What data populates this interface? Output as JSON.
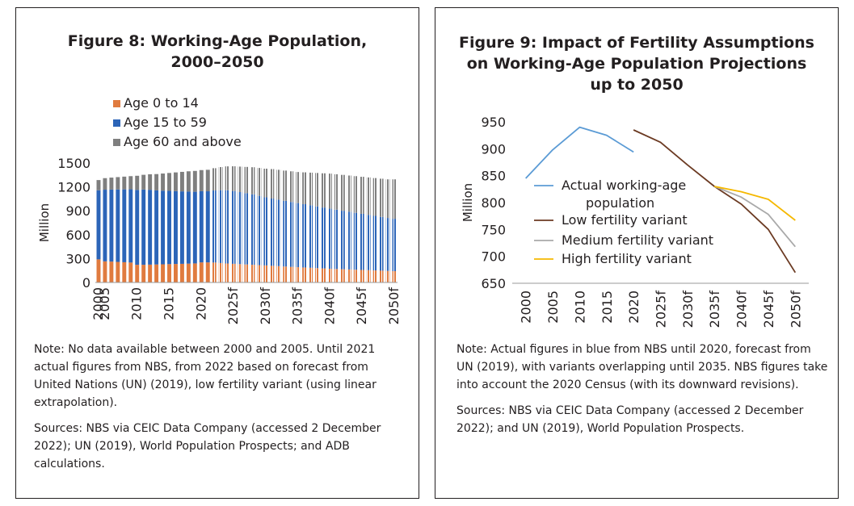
{
  "figure8": {
    "title_line1": "Figure 8: Working-Age Population,",
    "title_line2": "2000–2050",
    "note": "Note: No data available between 2000 and 2005. Until 2021 actual figures from NBS, from 2022 based on forecast from United Nations (UN) (2019), low fertility variant (using linear extrapolation).",
    "sources": "Sources: NBS via CEIC Data Company (accessed 2 December 2022); UN (2019), World Population Prospects; and ADB calculations."
  },
  "figure9": {
    "title_line1": "Figure 9: Impact of Fertility Assumptions",
    "title_line2": "on Working-Age Population Projections",
    "title_line3": "up to 2050",
    "note": "Note: Actual figures in blue from NBS until 2020, forecast from UN (2019), with variants overlapping until 2035. NBS figures take into account the 2020 Census (with its downward revisions).",
    "sources": "Sources: NBS via CEIC Data Company (accessed 2 December 2022); and UN (2019), World Population Prospects."
  },
  "chart_data": [
    {
      "type": "bar",
      "stacked": true,
      "ylabel": "Million",
      "ylim": [
        0,
        1500
      ],
      "yticks": [
        0,
        300,
        600,
        900,
        1200,
        1500
      ],
      "legend_position": "top",
      "forecast_style": "hatched from 2022",
      "categories": [
        "2000",
        "2005",
        "2006",
        "2007",
        "2008",
        "2009",
        "2010",
        "2011",
        "2012",
        "2013",
        "2014",
        "2015",
        "2016",
        "2017",
        "2018",
        "2019",
        "2020",
        "2021",
        "2022f",
        "2023f",
        "2024f",
        "2025f",
        "2026f",
        "2027f",
        "2028f",
        "2029f",
        "2030f",
        "2031f",
        "2032f",
        "2033f",
        "2034f",
        "2035f",
        "2036f",
        "2037f",
        "2038f",
        "2039f",
        "2040f",
        "2041f",
        "2042f",
        "2043f",
        "2044f",
        "2045f",
        "2046f",
        "2047f",
        "2048f",
        "2049f",
        "2050f"
      ],
      "tick_labels": [
        "2000",
        "2005",
        "2010",
        "2015",
        "2020",
        "2025f",
        "2030f",
        "2035f",
        "2040f",
        "2045f",
        "2050f"
      ],
      "series": [
        {
          "name": "Age 0 to 14",
          "color": "#e07b3f",
          "values": [
            290,
            265,
            262,
            258,
            254,
            250,
            222,
            222,
            224,
            226,
            228,
            230,
            232,
            234,
            236,
            239,
            252,
            252,
            250,
            244,
            238,
            234,
            230,
            226,
            222,
            218,
            214,
            209,
            205,
            200,
            196,
            192,
            188,
            184,
            180,
            176,
            172,
            169,
            166,
            163,
            160,
            157,
            154,
            151,
            148,
            145,
            142
          ]
        },
        {
          "name": "Age 15 to 59",
          "color": "#2c65b8",
          "values": [
            868,
            900,
            905,
            910,
            915,
            920,
            940,
            945,
            940,
            930,
            925,
            920,
            915,
            910,
            905,
            900,
            894,
            893,
            905,
            915,
            920,
            915,
            905,
            895,
            885,
            870,
            855,
            845,
            835,
            825,
            815,
            805,
            795,
            785,
            775,
            765,
            755,
            745,
            735,
            725,
            715,
            705,
            695,
            685,
            675,
            665,
            658
          ]
        },
        {
          "name": "Age 60 and above",
          "color": "#7f7f7f",
          "values": [
            128,
            145,
            150,
            155,
            160,
            165,
            178,
            185,
            195,
            205,
            215,
            225,
            235,
            245,
            255,
            262,
            265,
            270,
            280,
            290,
            300,
            310,
            320,
            330,
            340,
            350,
            360,
            370,
            375,
            380,
            385,
            390,
            400,
            410,
            420,
            430,
            440,
            445,
            450,
            455,
            460,
            465,
            470,
            475,
            480,
            485,
            495
          ]
        }
      ]
    },
    {
      "type": "line",
      "ylabel": "Million",
      "ylim": [
        650,
        950
      ],
      "yticks": [
        650,
        700,
        750,
        800,
        850,
        900,
        950
      ],
      "legend_position": "left-middle",
      "x": [
        "2000",
        "2005",
        "2010",
        "2015",
        "2020",
        "2025f",
        "2030f",
        "2035f",
        "2040f",
        "2045f",
        "2050f"
      ],
      "series": [
        {
          "name": "Actual working-age population",
          "color": "#5b9bd5",
          "values": [
            845,
            898,
            940,
            925,
            894,
            null,
            null,
            null,
            null,
            null,
            null
          ]
        },
        {
          "name": "Low fertility variant",
          "color": "#6b3a22",
          "values": [
            null,
            null,
            null,
            null,
            935,
            912,
            870,
            830,
            797,
            750,
            670
          ]
        },
        {
          "name": "Medium fertility variant",
          "color": "#a9a9a9",
          "values": [
            null,
            null,
            null,
            null,
            null,
            null,
            null,
            830,
            810,
            778,
            718
          ]
        },
        {
          "name": "High fertility variant",
          "color": "#f5b800",
          "values": [
            null,
            null,
            null,
            null,
            null,
            null,
            null,
            830,
            820,
            806,
            767
          ]
        }
      ]
    }
  ]
}
